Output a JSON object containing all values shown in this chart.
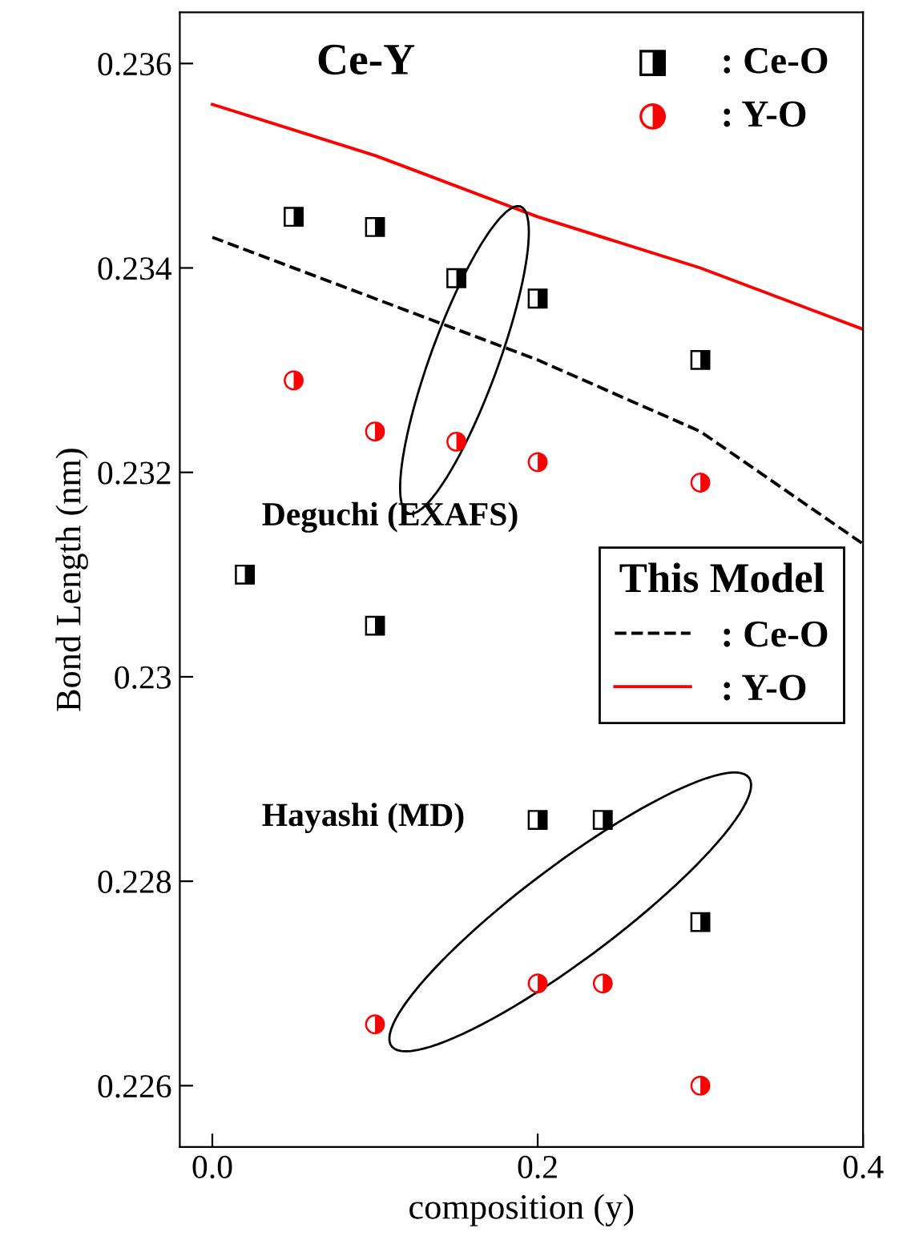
{
  "chart_data": {
    "type": "scatter",
    "xlabel": "composition (y)",
    "ylabel": "Bond Length (nm)",
    "legend_title": "This Model",
    "xlim": [
      -0.02,
      0.4
    ],
    "xticks": [
      {
        "value": 0.0,
        "label": "0.0"
      },
      {
        "value": 0.2,
        "label": "0.2"
      },
      {
        "value": 0.4,
        "label": "0.4"
      }
    ],
    "ylim": [
      0.2254,
      0.2365
    ],
    "yticks": [
      0.226,
      0.228,
      0.23,
      0.232,
      0.234,
      0.236
    ],
    "grid": false,
    "legend": "right",
    "annotations": [
      "Ce-Y",
      "Deguchi (EXAFS)",
      "Hayashi (MD)"
    ],
    "series": [
      {
        "name": ": Ce-O",
        "marker": "square",
        "color": "#000000",
        "x": [
          0.05,
          0.1,
          0.15,
          0.2,
          0.3,
          0.02,
          0.1,
          0.2,
          0.24,
          0.3
        ],
        "values": [
          0.2345,
          0.2344,
          0.2339,
          0.2337,
          0.2331,
          0.231,
          0.2305,
          0.2286,
          0.2286,
          0.2276
        ]
      },
      {
        "name": ": Y-O",
        "marker": "circle",
        "color": "#ff0000",
        "x": [
          0.05,
          0.1,
          0.15,
          0.2,
          0.3,
          0.1,
          0.2,
          0.24,
          0.3
        ],
        "values": [
          0.2329,
          0.2324,
          0.2323,
          0.2321,
          0.2319,
          0.2266,
          0.227,
          0.227,
          0.226
        ]
      },
      {
        "name": ": Ce-O",
        "type": "line",
        "line_style": "dashed",
        "color": "#000000",
        "x": [
          0.0,
          0.1,
          0.2,
          0.3,
          0.4
        ],
        "values": [
          0.2343,
          0.2337,
          0.2331,
          0.2324,
          0.2313
        ]
      },
      {
        "name": ": Y-O",
        "type": "line",
        "line_style": "solid",
        "color": "#ff0000",
        "x": [
          0.0,
          0.1,
          0.2,
          0.3,
          0.4
        ],
        "values": [
          0.2356,
          0.2351,
          0.2345,
          0.234,
          0.2334
        ]
      }
    ]
  }
}
